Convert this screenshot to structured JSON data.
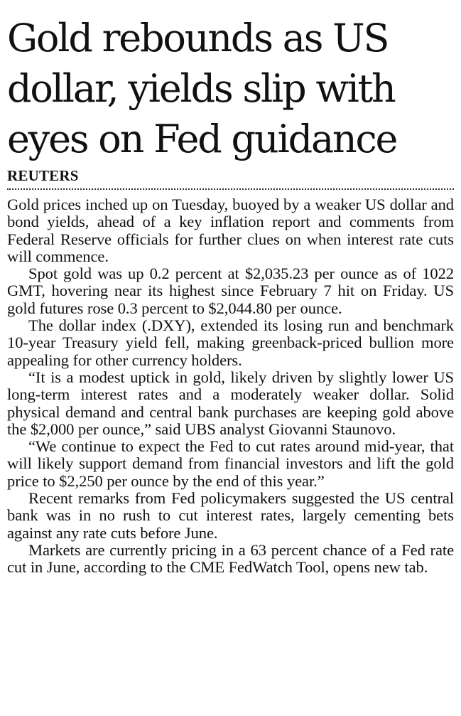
{
  "article": {
    "headline": "Gold rebounds as US dollar, yields slip with eyes on Fed guidance",
    "byline": "REUTERS",
    "paragraphs": [
      "Gold prices inched up on Tuesday, buoyed by a weaker US dollar and bond yields, ahead of a key inflation report and comments from Federal Reserve officials for further clues on when interest rate cuts will commence.",
      "Spot gold was up 0.2 percent at $2,035.23 per ounce as of 1022 GMT, hovering near its highest since February 7 hit on Friday. US gold futures rose 0.3 percent to $2,044.80 per ounce.",
      "The dollar index (.DXY), extended its losing run and benchmark 10-year Treasury yield fell, making greenback-priced bullion more appealing for other currency holders.",
      "“It is a modest uptick in gold, likely driven by slightly lower US long-term interest rates and a moderately weaker dollar. Solid physical demand and central bank purchases are keeping gold above the $2,000 per ounce,” said UBS analyst Giovanni Staunovo.",
      "“We continue to expect the Fed to cut rates around mid-year, that will likely support demand from financial investors and lift the gold price to $2,250 per ounce by the end of this year.”",
      "Recent remarks from Fed policymakers suggested the US central bank was in no rush to cut interest rates, largely cementing bets against any rate cuts before June.",
      "Markets are currently pricing in a 63 percent chance of a Fed rate cut in June, according to the CME FedWatch Tool, opens new tab."
    ]
  }
}
